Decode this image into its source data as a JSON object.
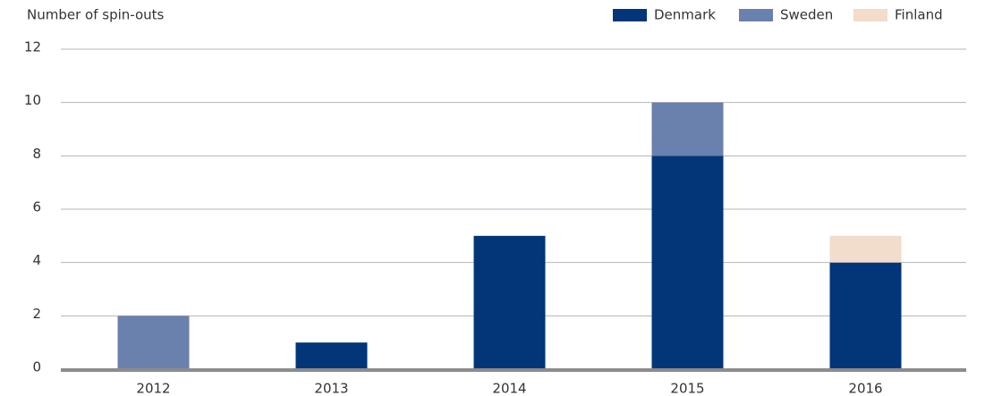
{
  "chart_data": {
    "type": "stacked_bar",
    "y_axis_label": "Number of spin-outs",
    "categories": [
      "2012",
      "2013",
      "2014",
      "2015",
      "2016"
    ],
    "series": [
      {
        "name": "Denmark",
        "color": "#023678",
        "values": [
          0,
          1,
          5,
          8,
          4
        ]
      },
      {
        "name": "Sweden",
        "color": "#6a80ad",
        "values": [
          2,
          0,
          0,
          2,
          0
        ]
      },
      {
        "name": "Finland",
        "color": "#f2dccb",
        "values": [
          0,
          0,
          0,
          0,
          1
        ]
      }
    ],
    "ylim": [
      0,
      12
    ],
    "yticks": [
      0,
      2,
      4,
      6,
      8,
      10,
      12
    ],
    "grid": true,
    "legend": "top-right"
  }
}
